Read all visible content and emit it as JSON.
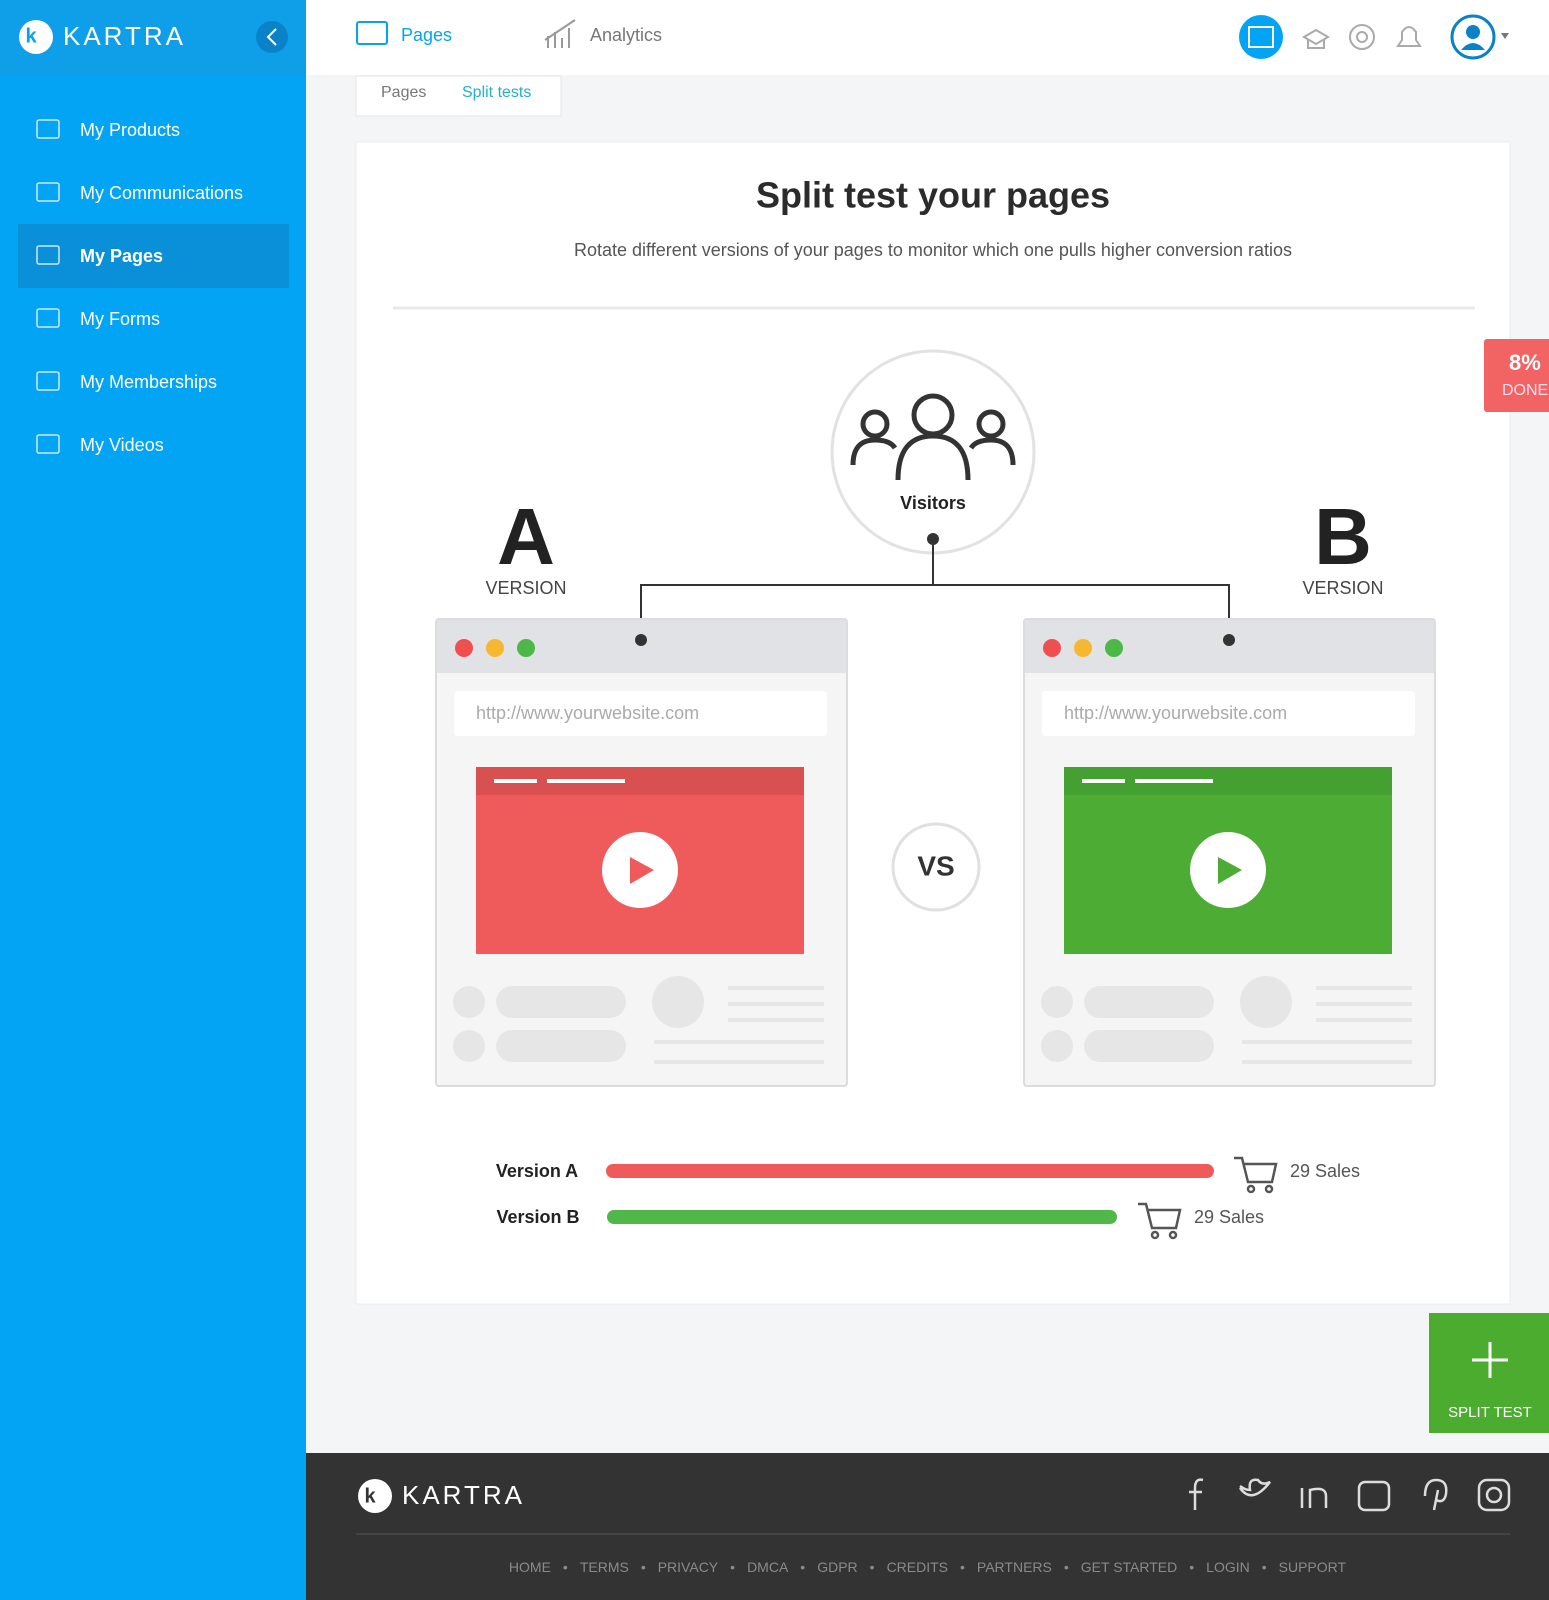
{
  "brand": "KARTRA",
  "sidebar": {
    "items": [
      "My Products",
      "My Communications",
      "My Pages",
      "My Forms",
      "My Memberships",
      "My Videos"
    ],
    "active": 2
  },
  "topbar": {
    "tabs": [
      "Pages",
      "Analytics"
    ]
  },
  "subtabs": [
    "Pages",
    "Split tests"
  ],
  "card": {
    "title": "Split test your pages",
    "subtitle": "Rotate different versions of your pages to monitor which one pulls higher conversion ratios",
    "visitors": "Visitors",
    "version_a": {
      "letter": "A",
      "label": "VERSION",
      "url": "http://www.yourwebsite.com"
    },
    "version_b": {
      "letter": "B",
      "label": "VERSION",
      "url": "http://www.yourwebsite.com"
    },
    "vs": "VS",
    "results": [
      {
        "name": "Version A",
        "sales": "29 Sales"
      },
      {
        "name": "Version B",
        "sales": "29 Sales"
      }
    ]
  },
  "progress": {
    "percent": "8%",
    "label": "DONE"
  },
  "button": "SPLIT TEST",
  "footer": {
    "brand": "KARTRA",
    "links": [
      "HOME",
      "TERMS",
      "PRIVACY",
      "DMCA",
      "GDPR",
      "CREDITS",
      "PARTNERS",
      "GET STARTED",
      "LOGIN",
      "SUPPORT"
    ]
  }
}
